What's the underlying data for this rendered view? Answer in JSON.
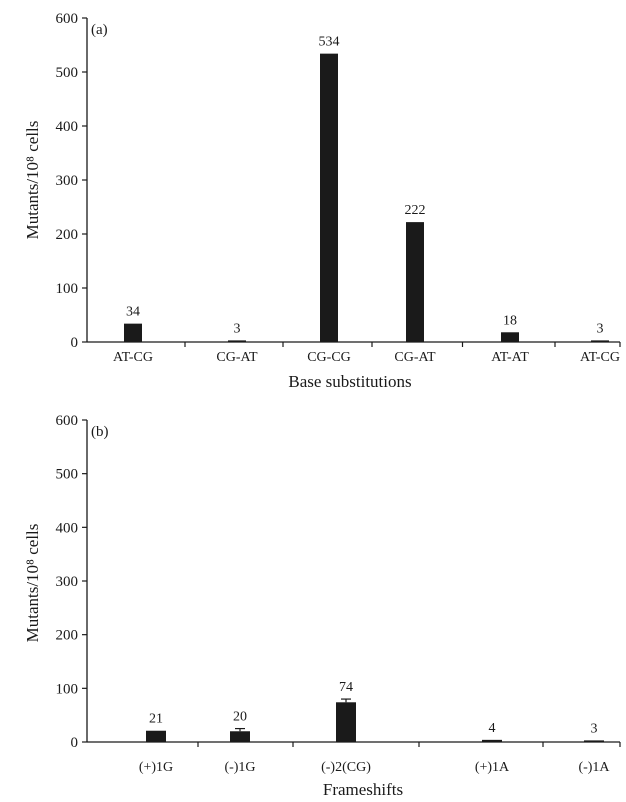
{
  "chart_data": [
    {
      "type": "bar",
      "panel": "(a)",
      "categories": [
        "AT-CG",
        "CG-AT",
        "CG-CG",
        "CG-AT",
        "AT-AT",
        "AT-CG"
      ],
      "values": [
        34,
        3,
        534,
        222,
        18,
        3
      ],
      "data_labels": [
        "34",
        "3",
        "534",
        "222",
        "18",
        "3"
      ],
      "xlabel": "Base substitutions",
      "ylabel": "Mutants/10⁸ cells",
      "ylim": [
        0,
        600
      ],
      "yticks": [
        0,
        100,
        200,
        300,
        400,
        500,
        600
      ],
      "bar_color": "#1a1a1a",
      "grid": false
    },
    {
      "type": "bar",
      "panel": "(b)",
      "categories": [
        "(+)1G",
        "(-)1G",
        "(-)2(CG)",
        "(+)1A",
        "(-)1A"
      ],
      "values": [
        21,
        20,
        74,
        4,
        3
      ],
      "data_labels": [
        "21",
        "20",
        "74",
        "4",
        "3"
      ],
      "error_bars": [
        0,
        5,
        6,
        0,
        0
      ],
      "xlabel": "Frameshifts",
      "ylabel": "Mutants/10⁸ cells",
      "ylim": [
        0,
        600
      ],
      "yticks": [
        0,
        100,
        200,
        300,
        400,
        500,
        600
      ],
      "bar_color": "#1a1a1a",
      "grid": false
    }
  ]
}
